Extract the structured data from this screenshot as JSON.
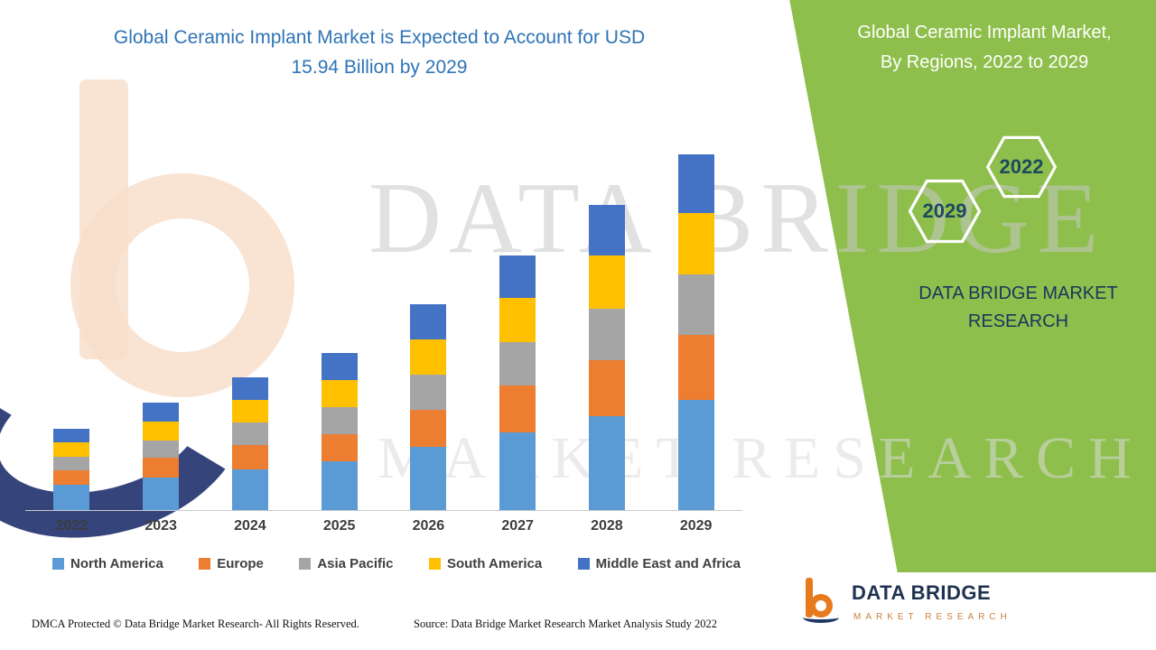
{
  "header": {
    "left_title": {
      "line1": "Global Ceramic Implant Market is Expected to Account for USD",
      "line2": "15.94 Billion by 2029"
    },
    "right_title": {
      "line1": "Global Ceramic Implant Market,",
      "line2": "By Regions, 2022 to 2029"
    }
  },
  "side_panel": {
    "hexagon_2022": "2022",
    "hexagon_2029": "2029",
    "brand": "DATA BRIDGE MARKET RESEARCH"
  },
  "watermark": {
    "line1": "DATA BRIDGE",
    "line2": "MARKET RESEARCH"
  },
  "footer": {
    "dmca": "DMCA Protected © Data Bridge Market Research- All Rights Reserved.",
    "source": "Source: Data Bridge Market Research Market Analysis Study 2022",
    "logo_title": "DATA BRIDGE",
    "logo_subtitle": "MARKET RESEARCH"
  },
  "colors": {
    "panel_green": "#8ebf4c",
    "title_blue": "#2e74b5",
    "brand_navy": "#17375e",
    "brand_orange": "#e87a1e"
  },
  "chart_data": {
    "type": "bar",
    "stacked": true,
    "title": "Global Ceramic Implant Market is Expected to Account for USD 15.94 Billion by 2029",
    "unit": "USD Billion",
    "categories": [
      "2022",
      "2023",
      "2024",
      "2025",
      "2026",
      "2027",
      "2028",
      "2029"
    ],
    "series": [
      {
        "name": "North America",
        "color": "#5b9bd5",
        "values": [
          1.13,
          1.46,
          1.83,
          2.17,
          2.83,
          3.5,
          4.21,
          4.92
        ]
      },
      {
        "name": "Europe",
        "color": "#ed7d31",
        "values": [
          0.67,
          0.88,
          1.08,
          1.25,
          1.67,
          2.08,
          2.5,
          2.92
        ]
      },
      {
        "name": "Asia Pacific",
        "color": "#a5a5a5",
        "values": [
          0.58,
          0.79,
          1.0,
          1.21,
          1.58,
          1.96,
          2.33,
          2.71
        ]
      },
      {
        "name": "South America",
        "color": "#ffc000",
        "values": [
          0.67,
          0.83,
          1.04,
          1.21,
          1.58,
          1.96,
          2.38,
          2.75
        ]
      },
      {
        "name": "Middle East and Africa",
        "color": "#4472c4",
        "values": [
          0.58,
          0.84,
          1.01,
          1.21,
          1.55,
          1.92,
          2.26,
          2.64
        ]
      }
    ],
    "totals": [
      3.63,
      4.8,
      5.96,
      7.05,
      9.21,
      11.42,
      13.68,
      15.94
    ],
    "ylim": [
      0,
      18
    ],
    "grid": false,
    "legend_position": "bottom"
  }
}
